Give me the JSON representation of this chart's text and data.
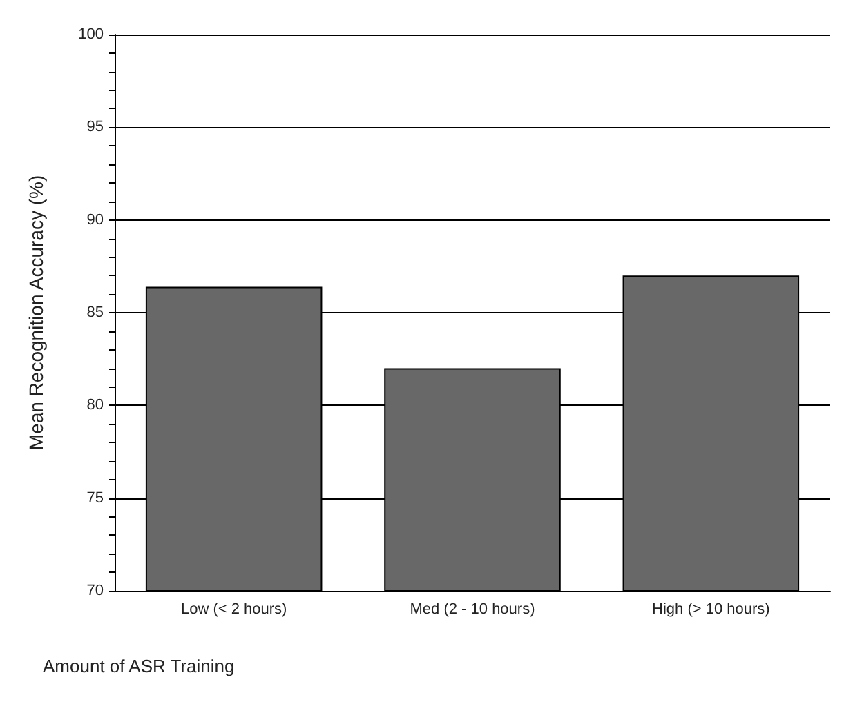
{
  "chart_data": {
    "type": "bar",
    "xlabel": "Amount of ASR Training",
    "ylabel": "Mean Recognition Accuracy (%)",
    "categories": [
      "Low (< 2 hours)",
      "Med (2 - 10 hours)",
      "High (> 10 hours)"
    ],
    "values": [
      86.4,
      82.0,
      87.0
    ],
    "color": "#686868",
    "ylim": [
      70,
      100
    ],
    "yticks": [
      70,
      {
        "value": 71,
        "label": null
      },
      {
        "value": 72,
        "label": null
      },
      {
        "value": 73,
        "label": null
      },
      {
        "value": 74,
        "label": null
      },
      75,
      {
        "value": 76,
        "label": null
      },
      {
        "value": 77,
        "label": null
      },
      {
        "value": 78,
        "label": null
      },
      {
        "value": 79,
        "label": null
      },
      80,
      {
        "value": 81,
        "label": null
      },
      {
        "value": 82,
        "label": null
      },
      {
        "value": 83,
        "label": null
      },
      {
        "value": 84,
        "label": null
      },
      85,
      {
        "value": 86,
        "label": null
      },
      {
        "value": 87,
        "label": null
      },
      {
        "value": 88,
        "label": null
      },
      {
        "value": 89,
        "label": null
      },
      90,
      {
        "value": 91,
        "label": null
      },
      {
        "value": 92,
        "label": null
      },
      {
        "value": 93,
        "label": null
      },
      {
        "value": 94,
        "label": null
      },
      95,
      {
        "value": 96,
        "label": null
      },
      {
        "value": 97,
        "label": null
      },
      {
        "value": 98,
        "label": null
      },
      {
        "value": 99,
        "label": null
      },
      100
    ],
    "grid": "y"
  }
}
